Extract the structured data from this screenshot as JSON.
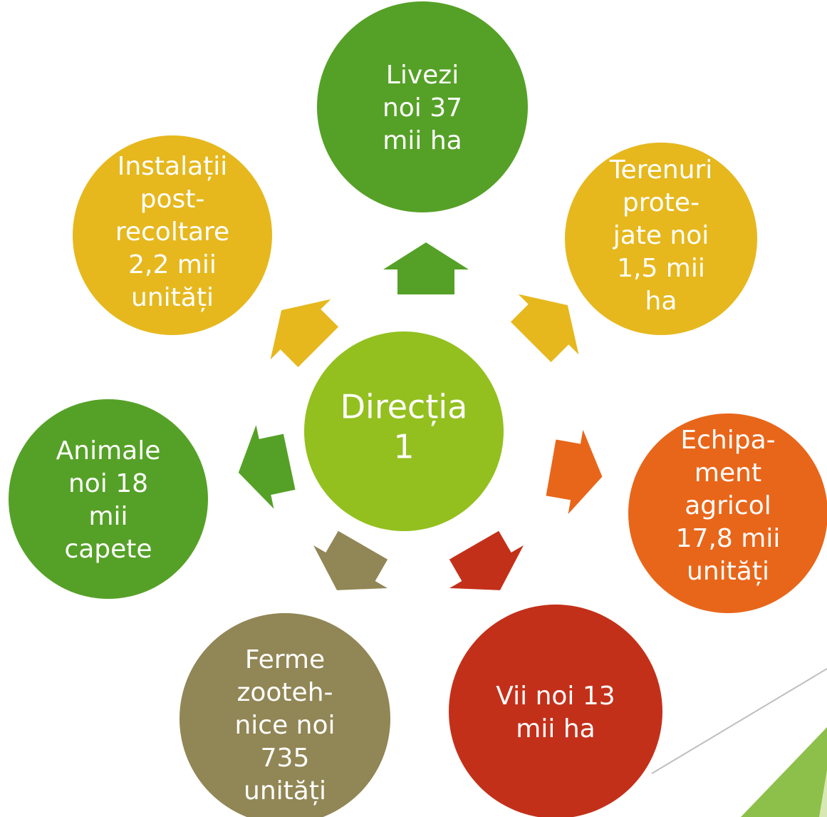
{
  "center": {
    "lines": [
      "Direcția",
      "1"
    ]
  },
  "nodes": [
    {
      "lines": [
        "Livezi",
        "noi 37",
        "mii ha"
      ]
    },
    {
      "lines": [
        "Terenuri",
        "prote-",
        "jate noi",
        "1,5 mii",
        "ha"
      ]
    },
    {
      "lines": [
        "Echipa-",
        "ment",
        "agricol",
        "17,8 mii",
        "unități"
      ]
    },
    {
      "lines": [
        "Vii noi 13",
        "mii ha"
      ]
    },
    {
      "lines": [
        "Ferme",
        "zooteh-",
        "nice noi",
        "735",
        "unități"
      ]
    },
    {
      "lines": [
        "Animale",
        "noi 18",
        "mii",
        "capete"
      ]
    },
    {
      "lines": [
        "Instalații",
        "post-",
        "recoltare",
        "2,2 mii",
        "unități"
      ]
    }
  ]
}
